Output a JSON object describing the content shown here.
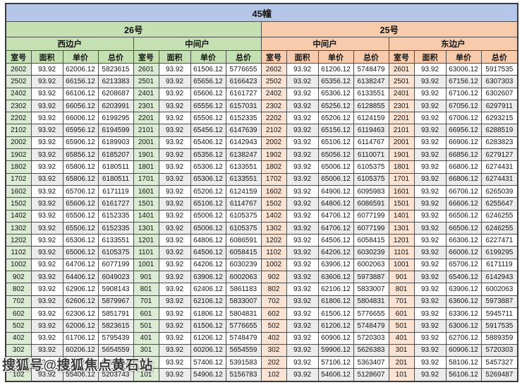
{
  "title": "45幢",
  "watermark": "搜狐号@搜狐焦点黄石站",
  "columns": [
    "室号",
    "面积",
    "单价",
    "总价"
  ],
  "buildings": [
    {
      "name": "26号"
    },
    {
      "name": "25号"
    }
  ],
  "units": [
    "西边户",
    "中间户",
    "中间户",
    "东边户"
  ],
  "colors": {
    "title_band": "#b5c6e8",
    "building_26_band": "#c5e0b3",
    "building_25_band": "#f8cbad",
    "room_cell_26": "#dcecd4",
    "room_cell_25": "#fbe3d3",
    "stripe": "#ececec"
  },
  "groups": [
    {
      "building": "26号",
      "unit": "西边户",
      "rows": [
        [
          "2602",
          "93.92",
          "62006.12",
          "5823615"
        ],
        [
          "2502",
          "93.92",
          "66156.12",
          "6213383"
        ],
        [
          "2402",
          "93.92",
          "66106.12",
          "6208687"
        ],
        [
          "2302",
          "93.92",
          "66056.12",
          "6203991"
        ],
        [
          "2202",
          "93.92",
          "66006.12",
          "6199295"
        ],
        [
          "2102",
          "93.92",
          "65956.12",
          "6194599"
        ],
        [
          "2002",
          "93.92",
          "65906.12",
          "6189903"
        ],
        [
          "1902",
          "93.92",
          "65856.12",
          "6185207"
        ],
        [
          "1802",
          "93.92",
          "65806.12",
          "6180511"
        ],
        [
          "1702",
          "93.92",
          "65806.12",
          "6180511"
        ],
        [
          "1602",
          "93.92",
          "65706.12",
          "6171119"
        ],
        [
          "1502",
          "93.92",
          "65606.12",
          "6161727"
        ],
        [
          "1402",
          "93.92",
          "65506.12",
          "6152335"
        ],
        [
          "1302",
          "93.92",
          "65506.12",
          "6152335"
        ],
        [
          "1202",
          "93.92",
          "65306.12",
          "6133551"
        ],
        [
          "1102",
          "93.92",
          "65006.12",
          "6105375"
        ],
        [
          "1002",
          "93.92",
          "64706.12",
          "6077199"
        ],
        [
          "902",
          "93.92",
          "64406.12",
          "6049023"
        ],
        [
          "802",
          "93.92",
          "62906.12",
          "5908143"
        ],
        [
          "702",
          "93.92",
          "62606.12",
          "5879967"
        ],
        [
          "602",
          "93.92",
          "62306.12",
          "5851791"
        ],
        [
          "502",
          "93.92",
          "62006.12",
          "5823615"
        ],
        [
          "402",
          "93.92",
          "61706.12",
          "5795439"
        ],
        [
          "302",
          "93.92",
          "60206.12",
          "5654559"
        ],
        [
          "202",
          "93.92",
          "57406.12",
          "5391583"
        ],
        [
          "102",
          "93.92",
          "55406.12",
          "5203743"
        ]
      ]
    },
    {
      "building": "26号",
      "unit": "中间户",
      "rows": [
        [
          "2601",
          "93.92",
          "61506.12",
          "5776655"
        ],
        [
          "2501",
          "93.92",
          "65656.12",
          "6166423"
        ],
        [
          "2401",
          "93.92",
          "65606.12",
          "6161727"
        ],
        [
          "2301",
          "93.92",
          "65556.12",
          "6157031"
        ],
        [
          "2201",
          "93.92",
          "65506.12",
          "6152335"
        ],
        [
          "2101",
          "93.92",
          "65456.12",
          "6147639"
        ],
        [
          "2001",
          "93.92",
          "65406.12",
          "6142943"
        ],
        [
          "1901",
          "93.92",
          "65356.12",
          "6138247"
        ],
        [
          "1801",
          "93.92",
          "65306.12",
          "6133551"
        ],
        [
          "1701",
          "93.92",
          "65306.12",
          "6133551"
        ],
        [
          "1601",
          "93.92",
          "65206.12",
          "6124159"
        ],
        [
          "1501",
          "93.92",
          "65106.12",
          "6114767"
        ],
        [
          "1401",
          "93.92",
          "65006.12",
          "6105375"
        ],
        [
          "1301",
          "93.92",
          "65006.12",
          "6105375"
        ],
        [
          "1201",
          "93.92",
          "64806.12",
          "6086591"
        ],
        [
          "1101",
          "93.92",
          "64506.12",
          "6058415"
        ],
        [
          "1001",
          "93.92",
          "64206.12",
          "6030239"
        ],
        [
          "901",
          "93.92",
          "63906.12",
          "6002063"
        ],
        [
          "801",
          "93.92",
          "62406.12",
          "5861183"
        ],
        [
          "701",
          "93.92",
          "62106.12",
          "5833007"
        ],
        [
          "601",
          "93.92",
          "61806.12",
          "5804831"
        ],
        [
          "501",
          "93.92",
          "61506.12",
          "5776655"
        ],
        [
          "401",
          "93.92",
          "61206.12",
          "5748479"
        ],
        [
          "301",
          "93.92",
          "60206.12",
          "5654559"
        ],
        [
          "201",
          "93.92",
          "57406.12",
          "5391583"
        ],
        [
          "101",
          "93.92",
          "54906.12",
          "5156783"
        ]
      ]
    },
    {
      "building": "25号",
      "unit": "中间户",
      "rows": [
        [
          "2602",
          "93.92",
          "61206.12",
          "5748479"
        ],
        [
          "2502",
          "93.92",
          "65356.12",
          "6138247"
        ],
        [
          "2402",
          "93.92",
          "65306.12",
          "6133551"
        ],
        [
          "2302",
          "93.92",
          "65256.12",
          "6128855"
        ],
        [
          "2202",
          "93.92",
          "65206.12",
          "6124159"
        ],
        [
          "2102",
          "93.92",
          "65156.12",
          "6119463"
        ],
        [
          "2002",
          "93.92",
          "65106.12",
          "6114767"
        ],
        [
          "1902",
          "93.92",
          "65056.12",
          "6110071"
        ],
        [
          "1802",
          "93.92",
          "65006.12",
          "6105375"
        ],
        [
          "1702",
          "93.92",
          "65006.12",
          "6105375"
        ],
        [
          "1602",
          "93.92",
          "64906.12",
          "6095983"
        ],
        [
          "1502",
          "93.92",
          "64806.12",
          "6086591"
        ],
        [
          "1402",
          "93.92",
          "64706.12",
          "6077199"
        ],
        [
          "1302",
          "93.92",
          "64706.12",
          "6077199"
        ],
        [
          "1202",
          "93.92",
          "64506.12",
          "6058415"
        ],
        [
          "1102",
          "93.92",
          "64206.12",
          "6030239"
        ],
        [
          "1002",
          "93.92",
          "63906.12",
          "6002063"
        ],
        [
          "902",
          "93.92",
          "63606.12",
          "5973887"
        ],
        [
          "802",
          "93.92",
          "62106.12",
          "5833007"
        ],
        [
          "702",
          "93.92",
          "61806.12",
          "5804831"
        ],
        [
          "602",
          "93.92",
          "61506.12",
          "5776655"
        ],
        [
          "502",
          "93.92",
          "61206.12",
          "5748479"
        ],
        [
          "402",
          "93.92",
          "60906.12",
          "5720303"
        ],
        [
          "302",
          "93.92",
          "59906.12",
          "5626383"
        ],
        [
          "202",
          "93.92",
          "57106.12",
          "5363407"
        ],
        [
          "102",
          "93.92",
          "54606.12",
          "5128607"
        ]
      ]
    },
    {
      "building": "25号",
      "unit": "东边户",
      "rows": [
        [
          "2601",
          "93.92",
          "63006.12",
          "5917535"
        ],
        [
          "2501",
          "93.92",
          "67156.12",
          "6307303"
        ],
        [
          "2401",
          "93.92",
          "67106.12",
          "6302607"
        ],
        [
          "2301",
          "93.92",
          "67056.12",
          "6297911"
        ],
        [
          "2201",
          "93.92",
          "67006.12",
          "6293215"
        ],
        [
          "2101",
          "93.92",
          "66956.12",
          "6288519"
        ],
        [
          "2001",
          "93.92",
          "66906.12",
          "6283823"
        ],
        [
          "1901",
          "93.92",
          "66856.12",
          "6279127"
        ],
        [
          "1801",
          "93.92",
          "66806.12",
          "6274431"
        ],
        [
          "1701",
          "93.92",
          "66806.12",
          "6274431"
        ],
        [
          "1601",
          "93.92",
          "66706.12",
          "6265039"
        ],
        [
          "1501",
          "93.92",
          "66606.12",
          "6255647"
        ],
        [
          "1401",
          "93.92",
          "66506.12",
          "6246255"
        ],
        [
          "1301",
          "93.92",
          "66506.12",
          "6246255"
        ],
        [
          "1201",
          "93.92",
          "66306.12",
          "6227471"
        ],
        [
          "1101",
          "93.92",
          "66006.12",
          "6199295"
        ],
        [
          "1001",
          "93.92",
          "65706.12",
          "6171119"
        ],
        [
          "901",
          "93.92",
          "65406.12",
          "6142943"
        ],
        [
          "801",
          "93.92",
          "63906.12",
          "6002063"
        ],
        [
          "701",
          "93.92",
          "63606.12",
          "5973887"
        ],
        [
          "601",
          "93.92",
          "63306.12",
          "5945711"
        ],
        [
          "501",
          "93.92",
          "63006.12",
          "5917535"
        ],
        [
          "401",
          "93.92",
          "62706.12",
          "5889359"
        ],
        [
          "301",
          "93.92",
          "60906.12",
          "5720303"
        ],
        [
          "201",
          "93.92",
          "58106.12",
          "5457327"
        ],
        [
          "101",
          "93.92",
          "56106.12",
          "5269487"
        ]
      ]
    }
  ]
}
